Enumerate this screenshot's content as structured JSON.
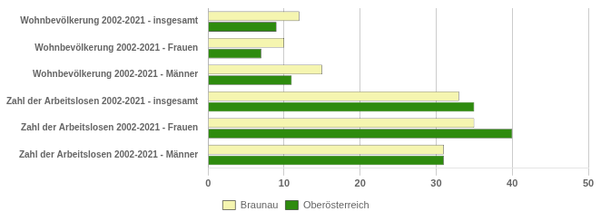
{
  "chart_data": {
    "type": "bar",
    "orientation": "horizontal",
    "categories": [
      "Zahl der Arbeitslosen 2002-2021 - Männer",
      "Zahl der Arbeitslosen 2002-2021 - Frauen",
      "Zahl der Arbeitslosen 2002-2021 - insgesamt",
      "Wohnbevölkerung 2002-2021 - Männer",
      "Wohnbevölkerung 2002-2021 - Frauen",
      "Wohnbevölkerung 2002-2021 - insgesamt"
    ],
    "series": [
      {
        "name": "Braunau",
        "color": "#f5f5b0",
        "values": [
          31,
          35,
          33,
          15,
          10,
          12
        ]
      },
      {
        "name": "Oberösterreich",
        "color": "#2e8b0e",
        "values": [
          31,
          40,
          35,
          11,
          7,
          9
        ]
      }
    ],
    "xlim": [
      0,
      50
    ],
    "xticks": [
      0,
      10,
      20,
      30,
      40,
      50
    ],
    "grid": true,
    "legend": "bottom"
  }
}
